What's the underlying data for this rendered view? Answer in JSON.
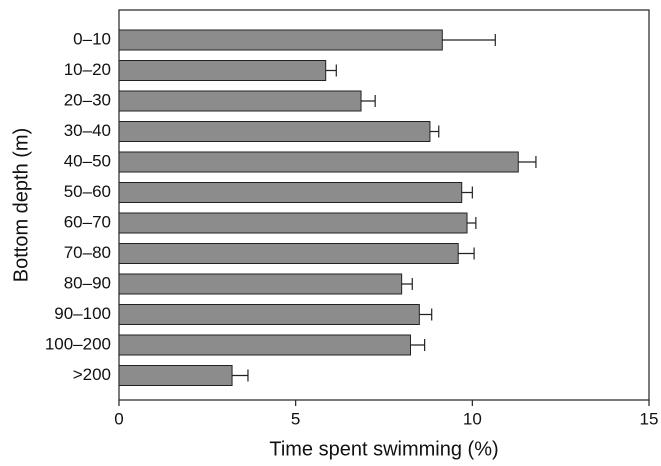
{
  "chart_data": {
    "type": "bar",
    "orientation": "horizontal",
    "x_label": "Time spent swimming (%)",
    "y_label": "Bottom depth (m)",
    "categories": [
      "0–10",
      "10–20",
      "20–30",
      "30–40",
      "40–50",
      "50–60",
      "60–70",
      "70–80",
      "80–90",
      "90–100",
      "100–200",
      ">200"
    ],
    "values": [
      9.15,
      5.85,
      6.85,
      8.8,
      11.3,
      9.7,
      9.85,
      9.6,
      8.0,
      8.5,
      8.25,
      3.2
    ],
    "errors": [
      1.5,
      0.3,
      0.4,
      0.25,
      0.5,
      0.3,
      0.25,
      0.45,
      0.3,
      0.35,
      0.4,
      0.45
    ],
    "color": "#8c8c8c",
    "xlim": [
      0,
      15
    ],
    "xticks": [
      0,
      5,
      10,
      15
    ],
    "grid": false
  }
}
